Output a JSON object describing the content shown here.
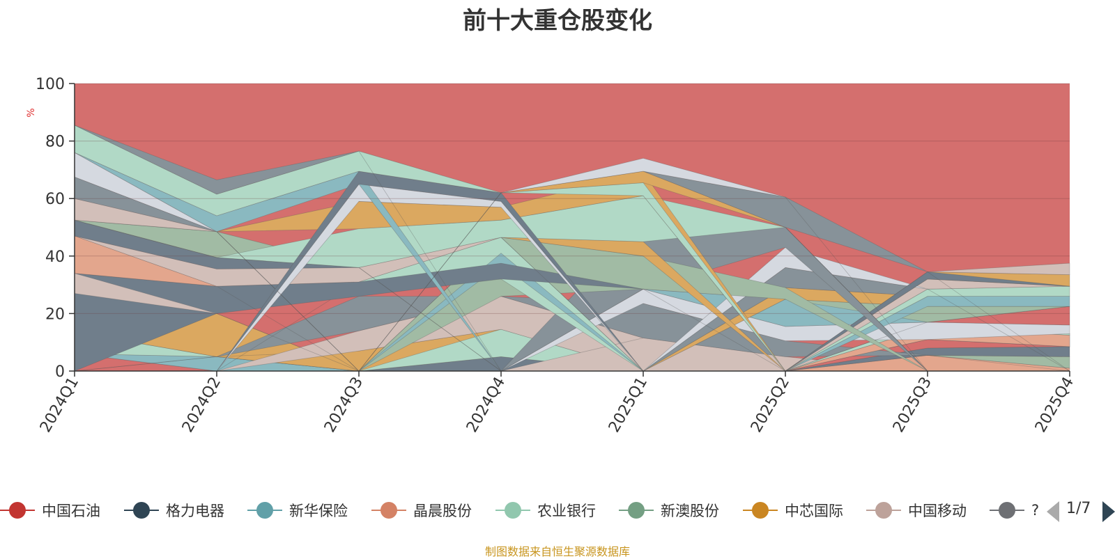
{
  "title": "前十大重仓股变化",
  "source_note": "制图数据来自恒生聚源数据库",
  "legend": {
    "items": [
      {
        "label": "中国石油",
        "color": "#c23531"
      },
      {
        "label": "格力电器",
        "color": "#2f4554"
      },
      {
        "label": "新华保险",
        "color": "#61a0a8"
      },
      {
        "label": "晶晨股份",
        "color": "#d48265"
      },
      {
        "label": "农业银行",
        "color": "#91c7ae"
      },
      {
        "label": "新澳股份",
        "color": "#749f83"
      },
      {
        "label": "中芯国际",
        "color": "#ca8622"
      },
      {
        "label": "中国移动",
        "color": "#bda29a"
      },
      {
        "label": "?",
        "color": "#6e7074"
      }
    ],
    "page_indicator": "1/7"
  },
  "chart_data": {
    "type": "area",
    "title": "前十大重仓股变化",
    "ylabel": "%",
    "ylim": [
      0,
      100
    ],
    "yticks": [
      0,
      20,
      40,
      60,
      80,
      100
    ],
    "categories": [
      "2024Q1",
      "2024Q2",
      "2024Q3",
      "2024Q4",
      "2025Q1",
      "2025Q2",
      "2025Q3",
      "2025Q4"
    ],
    "grid": true,
    "legend_position": "bottom",
    "background_band": {
      "color": "#d46f6e",
      "range": [
        0,
        100
      ]
    },
    "bands": [
      {
        "color": "#d46f6e",
        "lower": [
          0,
          0,
          0,
          0,
          0,
          0,
          0,
          0
        ],
        "upper": [
          6,
          0,
          0,
          0,
          0,
          0,
          0,
          0
        ]
      },
      {
        "color": "#8ab9c0",
        "lower": [
          6,
          0,
          0,
          0,
          0,
          0,
          0,
          0
        ],
        "upper": [
          6,
          5,
          0,
          0,
          0,
          0,
          0,
          0
        ]
      },
      {
        "color": "#b1d9c6",
        "lower": [
          6,
          5,
          0,
          0,
          0,
          0,
          0,
          0
        ],
        "upper": [
          13.5,
          5,
          0,
          0,
          0,
          0,
          0,
          0
        ]
      },
      {
        "color": "#a1bba4",
        "lower": [
          13.5,
          5,
          0,
          0,
          0,
          0,
          0,
          0
        ],
        "upper": [
          13.5,
          12.5,
          0,
          0,
          0,
          0,
          0,
          0
        ]
      },
      {
        "color": "#dba860",
        "lower": [
          13.5,
          5,
          0,
          0,
          0,
          0,
          0,
          0
        ],
        "upper": [
          27,
          20,
          0,
          0,
          0,
          0,
          0,
          0
        ]
      },
      {
        "color": "#dba860",
        "lower": [
          0,
          5,
          0,
          0,
          0,
          0,
          0,
          0
        ],
        "upper": [
          0,
          5,
          7,
          14.5,
          0,
          0,
          0,
          0
        ]
      },
      {
        "color": "#707e8b",
        "lower": [
          0,
          0,
          0,
          0,
          0,
          0,
          0,
          0
        ],
        "upper": [
          0,
          0,
          0,
          5,
          0,
          0,
          0,
          0
        ]
      },
      {
        "color": "#b1d9c6",
        "lower": [
          0,
          0,
          0,
          5,
          0,
          0,
          0,
          0
        ],
        "upper": [
          0,
          0,
          0,
          14.5,
          0,
          0,
          0,
          0
        ]
      },
      {
        "color": "#d2bfb9",
        "lower": [
          0,
          0,
          7,
          14.5,
          0,
          0,
          0,
          0
        ],
        "upper": [
          0,
          0,
          14,
          26,
          11.5,
          5,
          0,
          0
        ]
      },
      {
        "color": "#d2bfb9",
        "lower": [
          0,
          0,
          0,
          0,
          0,
          0,
          0,
          0
        ],
        "upper": [
          0,
          0,
          0,
          0,
          11.5,
          5,
          0,
          0
        ]
      },
      {
        "color": "#e3a68d",
        "lower": [
          0,
          0,
          0,
          0,
          0,
          0,
          0,
          0
        ],
        "upper": [
          0,
          0,
          0,
          0,
          0,
          0,
          5.5,
          1
        ]
      },
      {
        "color": "#a1bba4",
        "lower": [
          0,
          0,
          0,
          0,
          0,
          0,
          5.5,
          1
        ],
        "upper": [
          0,
          0,
          0,
          0,
          0,
          0,
          5.5,
          5
        ]
      },
      {
        "color": "#707e8b",
        "lower": [
          0,
          0,
          0,
          0,
          0,
          0,
          5.5,
          5
        ],
        "upper": [
          0,
          0,
          0,
          0,
          0,
          0,
          8,
          8.5
        ]
      },
      {
        "color": "#d46f6e",
        "lower": [
          0,
          0,
          0,
          0,
          0,
          0,
          8,
          8.5
        ],
        "upper": [
          0,
          0,
          0,
          0,
          0,
          0,
          11,
          8.5
        ]
      },
      {
        "color": "#879299",
        "lower": [
          0,
          5,
          14,
          26,
          11.5,
          5,
          5.5,
          0
        ],
        "upper": [
          0,
          5,
          26,
          26,
          23.5,
          10.5,
          5.5,
          0
        ]
      },
      {
        "color": "#879299",
        "lower": [
          0,
          0,
          0,
          0,
          0,
          0,
          11,
          8.5
        ],
        "upper": [
          0,
          0,
          0,
          0,
          0,
          0,
          11,
          13
        ]
      },
      {
        "color": "#e3a68d",
        "lower": [
          0,
          0,
          0,
          0,
          0,
          0,
          11,
          8.5
        ],
        "upper": [
          0,
          0,
          0,
          0,
          0,
          0,
          15,
          12.5
        ]
      },
      {
        "color": "#b1d9c6",
        "lower": [
          0,
          0,
          0,
          0,
          0,
          0,
          15,
          12.5
        ],
        "upper": [
          0,
          0,
          0,
          0,
          0,
          0,
          17,
          13
        ]
      },
      {
        "color": "#d5d9e0",
        "lower": [
          0,
          0,
          0,
          0,
          23.5,
          10.5,
          11,
          13
        ],
        "upper": [
          0,
          0,
          0,
          0,
          28.5,
          15.5,
          17,
          16
        ]
      },
      {
        "color": "#d46f6e",
        "lower": [
          0,
          0,
          0,
          0,
          0,
          0,
          17,
          16
        ],
        "upper": [
          0,
          0,
          0,
          0,
          0,
          0,
          17,
          22.5
        ]
      },
      {
        "color": "#8ab9c0",
        "lower": [
          0,
          0,
          0,
          0,
          28.5,
          15.5,
          17,
          22.5
        ],
        "upper": [
          0,
          0,
          0,
          0,
          28.5,
          25,
          22.5,
          22.5
        ]
      },
      {
        "color": "#a1bba4",
        "lower": [
          0,
          0,
          0,
          0,
          0,
          25,
          17,
          22.5
        ],
        "upper": [
          0,
          0,
          0,
          0,
          0,
          25,
          22.5,
          22.5
        ]
      },
      {
        "color": "#dba860",
        "lower": [
          0,
          0,
          0,
          0,
          0,
          25,
          22.5,
          22.5
        ],
        "upper": [
          0,
          0,
          0,
          0,
          0,
          29,
          26,
          22.5
        ]
      },
      {
        "color": "#879299",
        "lower": [
          0,
          0,
          0,
          0,
          0,
          29,
          26,
          22.5
        ],
        "upper": [
          0,
          0,
          0,
          0,
          0,
          36,
          28.5,
          22.5
        ]
      },
      {
        "color": "#8ab9c0",
        "lower": [
          0,
          0,
          0,
          0,
          0,
          0,
          22.5,
          22.5
        ],
        "upper": [
          0,
          0,
          0,
          0,
          0,
          0,
          26,
          26
        ]
      },
      {
        "color": "#b1d9c6",
        "lower": [
          0,
          0,
          0,
          0,
          0,
          0,
          26,
          26
        ],
        "upper": [
          0,
          0,
          0,
          0,
          0,
          0,
          28.5,
          29.5
        ]
      },
      {
        "color": "#d2bfb9",
        "lower": [
          0,
          0,
          0,
          0,
          0,
          0,
          28.5,
          29.5
        ],
        "upper": [
          0,
          0,
          0,
          0,
          0,
          0,
          32,
          29.5
        ]
      },
      {
        "color": "#d5d9e0",
        "lower": [
          0,
          0,
          0,
          0,
          0,
          36,
          28.5,
          0
        ],
        "upper": [
          0,
          0,
          0,
          0,
          0,
          43,
          28.5,
          0
        ]
      },
      {
        "color": "#dba860",
        "lower": [
          0,
          0,
          0,
          0,
          0,
          0,
          32,
          29.5
        ],
        "upper": [
          0,
          0,
          0,
          0,
          0,
          0,
          34.5,
          33.5
        ]
      },
      {
        "color": "#d2bfb9",
        "lower": [
          0,
          0,
          0,
          0,
          0,
          0,
          34.5,
          33.5
        ],
        "upper": [
          0,
          0,
          0,
          0,
          0,
          0,
          34.5,
          37.5
        ]
      },
      {
        "color": "#707e8b",
        "lower": [
          0,
          0,
          0,
          0,
          0,
          0,
          32,
          29.5
        ],
        "upper": [
          0,
          0,
          0,
          0,
          0,
          0,
          34.5,
          29.5
        ]
      },
      {
        "color": "#879299",
        "lower": [
          0,
          0,
          0,
          0,
          28.5,
          43,
          0,
          0
        ],
        "upper": [
          0,
          0,
          0,
          0,
          52,
          50,
          0,
          0
        ]
      },
      {
        "color": "#a1bba4",
        "lower": [
          0,
          0,
          0,
          26,
          28.5,
          25,
          0,
          0
        ],
        "upper": [
          0,
          0,
          0,
          46.5,
          40,
          29,
          0,
          0
        ]
      },
      {
        "color": "#dba860",
        "lower": [
          0,
          0,
          0,
          46.5,
          40,
          0,
          0,
          0
        ],
        "upper": [
          0,
          0,
          0,
          46.5,
          45,
          0,
          0,
          0
        ]
      },
      {
        "color": "#b1d9c6",
        "lower": [
          0,
          0,
          31,
          32,
          0,
          0,
          0,
          0
        ],
        "upper": [
          0,
          0,
          31,
          46.5,
          0,
          0,
          0,
          0
        ]
      },
      {
        "color": "#8ab9c0",
        "lower": [
          0,
          0,
          0,
          37,
          0,
          0,
          0,
          0
        ],
        "upper": [
          0,
          0,
          0,
          41,
          0,
          0,
          0,
          0
        ]
      },
      {
        "color": "#707e8b",
        "lower": [
          0,
          20,
          26,
          32,
          28.5,
          0,
          0,
          0
        ],
        "upper": [
          34,
          29.5,
          31,
          37.5,
          28.5,
          0,
          0,
          0
        ]
      },
      {
        "color": "#d2bfb9",
        "lower": [
          27,
          20,
          0,
          0,
          0,
          0,
          0,
          0
        ],
        "upper": [
          34,
          20,
          0,
          0,
          0,
          0,
          0,
          0
        ]
      },
      {
        "color": "#e3a68d",
        "lower": [
          34,
          29.5,
          0,
          0,
          0,
          0,
          0,
          0
        ],
        "upper": [
          47,
          29.5,
          0,
          0,
          0,
          0,
          0,
          0
        ]
      },
      {
        "color": "#d2bfb9",
        "lower": [
          47,
          29.5,
          31,
          46.5,
          0,
          0,
          0,
          0
        ],
        "upper": [
          47,
          35.5,
          36,
          46.5,
          0,
          0,
          0,
          0
        ]
      },
      {
        "color": "#707e8b",
        "lower": [
          47,
          35.5,
          36,
          0,
          0,
          0,
          0,
          0
        ],
        "upper": [
          52.5,
          39.5,
          36,
          0,
          0,
          0,
          0,
          0
        ]
      },
      {
        "color": "#a1bba4",
        "lower": [
          52.5,
          39.5,
          36,
          0,
          0,
          0,
          0,
          0
        ],
        "upper": [
          52.5,
          48.5,
          36,
          0,
          0,
          0,
          0,
          0
        ]
      },
      {
        "color": "#b1d9c6",
        "lower": [
          52.5,
          39.5,
          36,
          46.5,
          45,
          50,
          0,
          0
        ],
        "upper": [
          52.5,
          39.5,
          49.5,
          52.5,
          61,
          50,
          0,
          0
        ]
      },
      {
        "color": "#dba860",
        "lower": [
          52.5,
          48.5,
          49.5,
          52.5,
          61,
          0,
          0,
          0
        ],
        "upper": [
          52.5,
          48.5,
          59,
          57,
          69,
          0,
          0,
          0
        ]
      },
      {
        "color": "#d2bfb9",
        "lower": [
          52.5,
          48.5,
          0,
          0,
          0,
          0,
          0,
          0
        ],
        "upper": [
          60,
          48.5,
          0,
          0,
          0,
          0,
          0,
          0
        ]
      },
      {
        "color": "#d5d9e0",
        "lower": [
          0,
          0,
          59,
          57,
          0,
          0,
          0,
          0
        ],
        "upper": [
          0,
          0,
          65,
          59,
          0,
          0,
          0,
          0
        ]
      },
      {
        "color": "#879299",
        "lower": [
          60,
          48.5,
          0,
          0,
          0,
          0,
          0,
          0
        ],
        "upper": [
          67.5,
          48.5,
          0,
          0,
          0,
          0,
          0,
          0
        ]
      },
      {
        "color": "#d5d9e0",
        "lower": [
          67.5,
          48.5,
          0,
          0,
          0,
          0,
          0,
          0
        ],
        "upper": [
          76,
          48.5,
          0,
          0,
          0,
          0,
          0,
          0
        ]
      },
      {
        "color": "#8ab9c0",
        "lower": [
          76,
          48.5,
          65,
          0,
          0,
          0,
          0,
          0
        ],
        "upper": [
          76,
          54,
          69.5,
          0,
          0,
          0,
          0,
          0
        ]
      },
      {
        "color": "#707e8b",
        "lower": [
          0,
          0,
          65,
          59,
          0,
          0,
          0,
          0
        ],
        "upper": [
          0,
          0,
          69.5,
          62,
          0,
          0,
          0,
          0
        ]
      },
      {
        "color": "#b1d9c6",
        "lower": [
          76,
          54,
          69.5,
          62,
          61,
          0,
          0,
          0
        ],
        "upper": [
          85.5,
          61.5,
          76.5,
          62,
          65.5,
          0,
          0,
          0
        ]
      },
      {
        "color": "#879299",
        "lower": [
          85.5,
          61.5,
          76.5,
          0,
          0,
          0,
          0,
          0
        ],
        "upper": [
          85.5,
          66.5,
          76.5,
          0,
          0,
          0,
          0,
          0
        ]
      },
      {
        "color": "#dba860",
        "lower": [
          0,
          0,
          0,
          62,
          65.5,
          50,
          0,
          0
        ],
        "upper": [
          0,
          0,
          0,
          62,
          69.5,
          50,
          0,
          0
        ]
      },
      {
        "color": "#879299",
        "lower": [
          0,
          0,
          0,
          62,
          69.5,
          50,
          34.5,
          0
        ],
        "upper": [
          0,
          0,
          0,
          62,
          69.5,
          60.5,
          34.5,
          0
        ]
      },
      {
        "color": "#d5d9e0",
        "lower": [
          0,
          0,
          0,
          62,
          69.5,
          60.5,
          0,
          0
        ],
        "upper": [
          0,
          0,
          0,
          62,
          74,
          60.5,
          0,
          0
        ]
      }
    ]
  }
}
